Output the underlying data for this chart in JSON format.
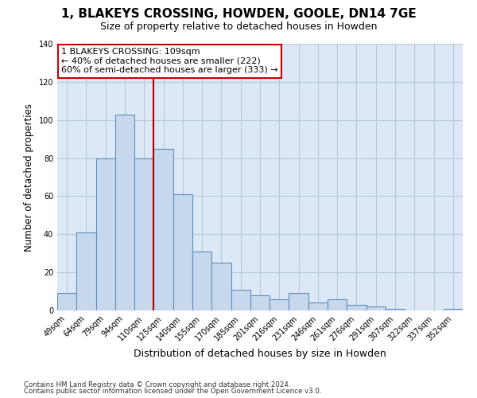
{
  "title": "1, BLAKEYS CROSSING, HOWDEN, GOOLE, DN14 7GE",
  "subtitle": "Size of property relative to detached houses in Howden",
  "xlabel": "Distribution of detached houses by size in Howden",
  "ylabel": "Number of detached properties",
  "categories": [
    "49sqm",
    "64sqm",
    "79sqm",
    "94sqm",
    "110sqm",
    "125sqm",
    "140sqm",
    "155sqm",
    "170sqm",
    "185sqm",
    "201sqm",
    "216sqm",
    "231sqm",
    "246sqm",
    "261sqm",
    "276sqm",
    "291sqm",
    "307sqm",
    "322sqm",
    "337sqm",
    "352sqm"
  ],
  "values": [
    9,
    41,
    80,
    103,
    80,
    85,
    61,
    31,
    25,
    11,
    8,
    6,
    9,
    4,
    6,
    3,
    2,
    1,
    0,
    0,
    1
  ],
  "bar_color": "#c8d8ec",
  "bar_edge_color": "#5a8fc0",
  "vline_x_index": 4,
  "vline_color": "#aa0000",
  "annotation_box_title": "1 BLAKEYS CROSSING: 109sqm",
  "annotation_line1": "← 40% of detached houses are smaller (222)",
  "annotation_line2": "60% of semi-detached houses are larger (333) →",
  "annotation_box_color": "#ffffff",
  "annotation_box_edge": "#cc0000",
  "ylim": [
    0,
    140
  ],
  "yticks": [
    0,
    20,
    40,
    60,
    80,
    100,
    120,
    140
  ],
  "footnote1": "Contains HM Land Registry data © Crown copyright and database right 2024.",
  "footnote2": "Contains public sector information licensed under the Open Government Licence v3.0.",
  "plot_bg_color": "#dce8f5",
  "fig_bg_color": "#ffffff",
  "grid_color": "#b8c8d8",
  "title_fontsize": 11,
  "subtitle_fontsize": 9,
  "tick_fontsize": 7,
  "ylabel_fontsize": 8.5,
  "xlabel_fontsize": 9
}
